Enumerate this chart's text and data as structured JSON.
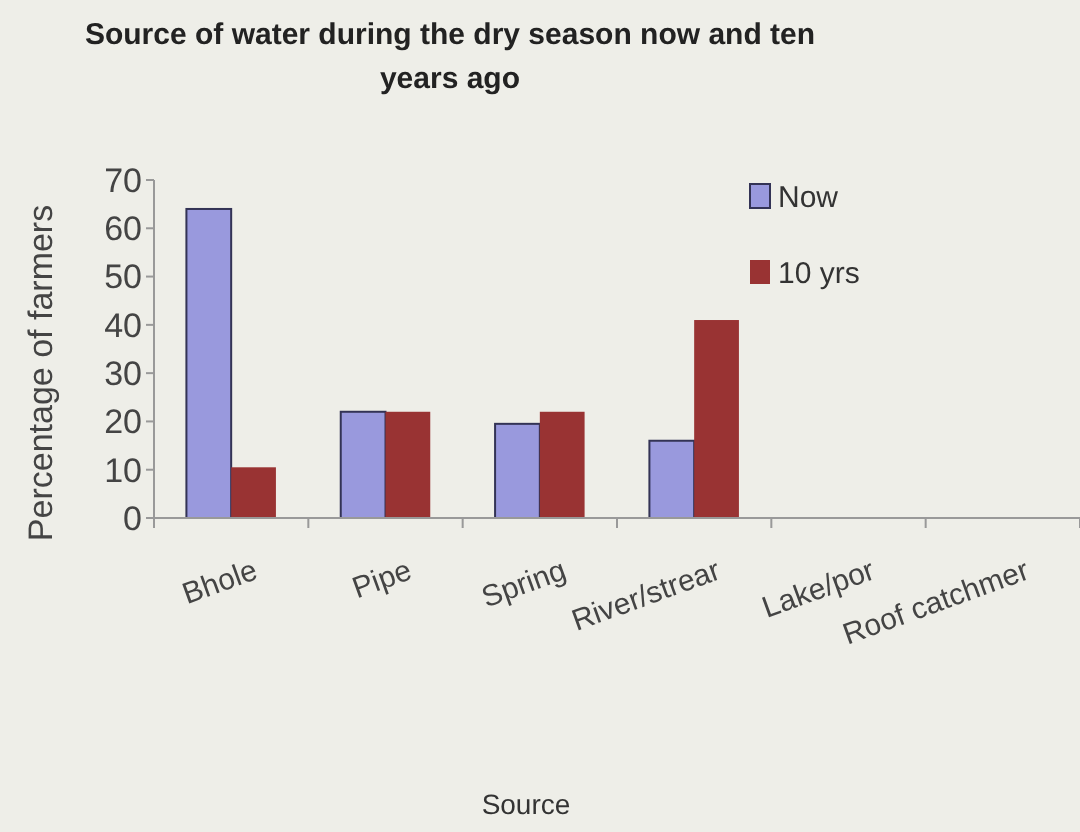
{
  "chart_data": {
    "type": "bar",
    "title": "Source of water during the dry season now and ten years ago",
    "xlabel": "Source",
    "ylabel": "Percentage of farmers",
    "categories": [
      "Bhole",
      "Pipe",
      "Spring",
      "River/strear",
      "Lake/por",
      "Roof catchmer"
    ],
    "series": [
      {
        "name": "Now",
        "color": "#9999dd",
        "values": [
          64,
          22,
          19.5,
          16,
          0,
          0
        ]
      },
      {
        "name": "10 yrs",
        "color": "#993333",
        "values": [
          10.5,
          22,
          22,
          41,
          0,
          0
        ]
      }
    ],
    "ylim": [
      0,
      70
    ],
    "yticks": [
      0,
      10,
      20,
      30,
      40,
      50,
      60,
      70
    ],
    "grid": false,
    "legend": "top right"
  }
}
